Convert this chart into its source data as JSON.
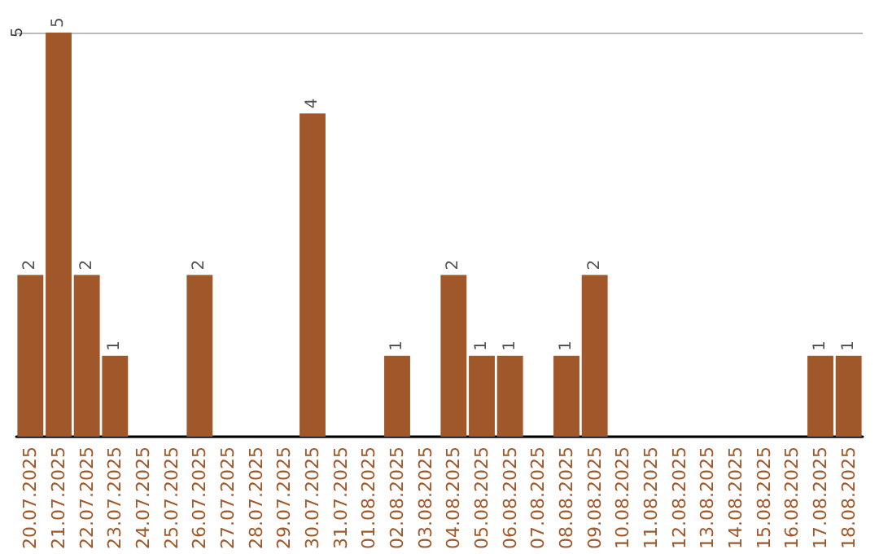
{
  "chart_data": {
    "type": "bar",
    "categories": [
      "20.07.2025",
      "21.07.2025",
      "22.07.2025",
      "23.07.2025",
      "24.07.2025",
      "25.07.2025",
      "26.07.2025",
      "27.07.2025",
      "28.07.2025",
      "29.07.2025",
      "30.07.2025",
      "31.07.2025",
      "01.08.2025",
      "02.08.2025",
      "03.08.2025",
      "04.08.2025",
      "05.08.2025",
      "06.08.2025",
      "07.08.2025",
      "08.08.2025",
      "09.08.2025",
      "10.08.2025",
      "11.08.2025",
      "12.08.2025",
      "13.08.2025",
      "14.08.2025",
      "15.08.2025",
      "16.08.2025",
      "17.08.2025",
      "18.08.2025"
    ],
    "values": [
      2,
      5,
      2,
      1,
      0,
      0,
      2,
      0,
      0,
      0,
      4,
      0,
      0,
      1,
      0,
      2,
      1,
      1,
      0,
      1,
      2,
      0,
      0,
      0,
      0,
      0,
      0,
      0,
      1,
      1
    ],
    "value_labels": [
      "2",
      "5",
      "2",
      "1",
      null,
      null,
      "2",
      null,
      null,
      null,
      "4",
      null,
      null,
      "1",
      null,
      "2",
      "1",
      "1",
      null,
      "1",
      "2",
      null,
      null,
      null,
      null,
      null,
      null,
      null,
      "1",
      "1"
    ],
    "color": "#a0582a",
    "ylim": [
      0,
      5
    ],
    "yticks": [
      5
    ],
    "grid": "y"
  }
}
